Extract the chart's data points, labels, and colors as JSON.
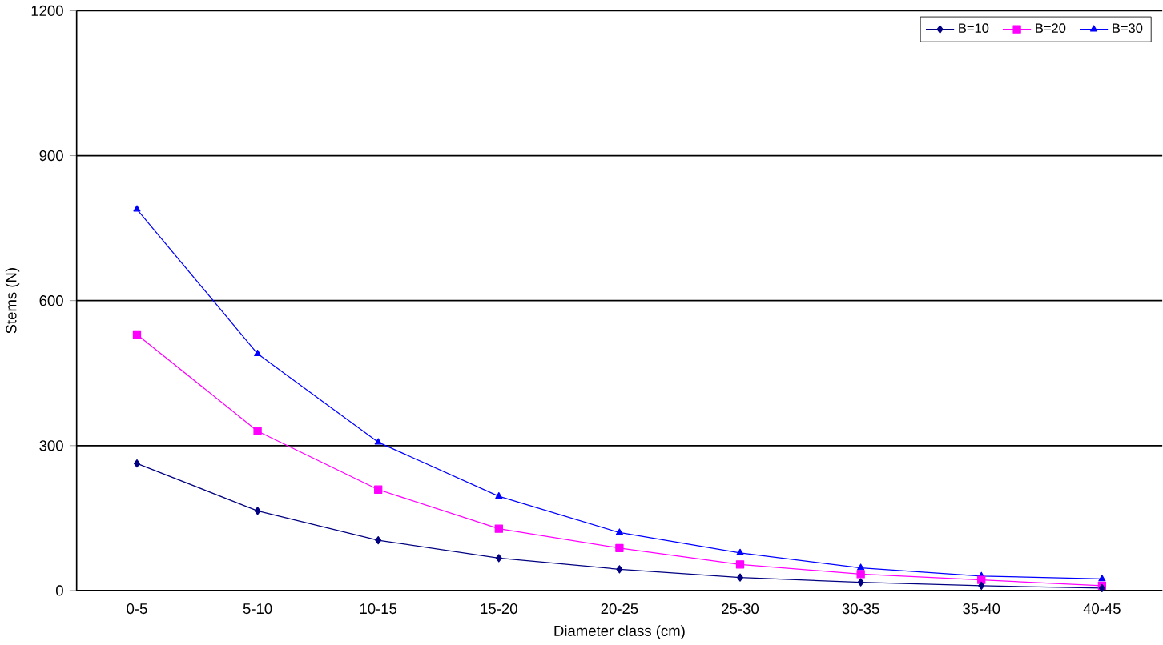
{
  "chart_data": {
    "type": "line",
    "xlabel": "Diameter class (cm)",
    "ylabel": "Stems (N)",
    "categories": [
      "0-5",
      "5-10",
      "10-15",
      "15-20",
      "20-25",
      "25-30",
      "30-35",
      "35-40",
      "40-45"
    ],
    "series": [
      {
        "name": "B=10",
        "color": "#000080",
        "marker": "diamond",
        "values": [
          263,
          165,
          104,
          67,
          44,
          27,
          17,
          10,
          5
        ]
      },
      {
        "name": "B=20",
        "color": "#ff00ff",
        "marker": "square",
        "values": [
          530,
          330,
          209,
          128,
          88,
          54,
          34,
          22,
          10
        ]
      },
      {
        "name": "B=30",
        "color": "#0000ff",
        "marker": "triangle",
        "values": [
          789,
          490,
          307,
          195,
          120,
          78,
          47,
          30,
          24
        ]
      }
    ],
    "ylim": [
      0,
      1200
    ],
    "yticks": [
      0,
      300,
      600,
      900,
      1200
    ],
    "grid": "y",
    "legend": "top right",
    "line_style": "solid"
  }
}
